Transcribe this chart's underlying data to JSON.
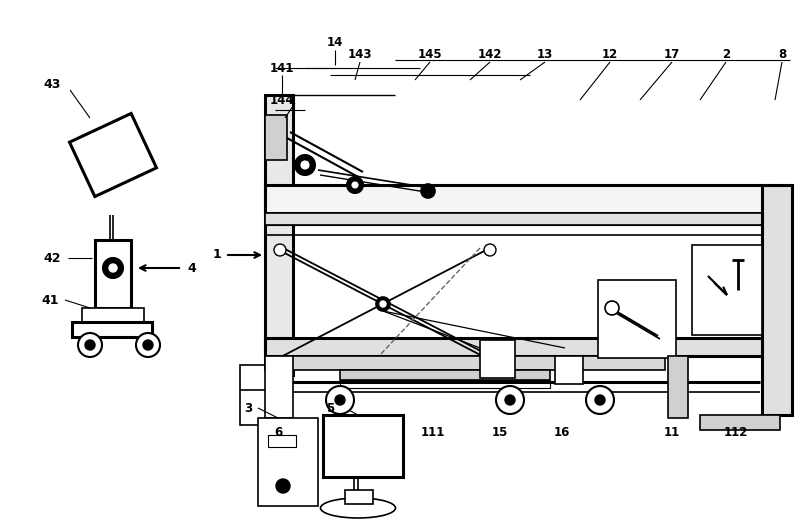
{
  "bg_color": "#ffffff",
  "lc": "#000000",
  "lw": 1.2,
  "tlw": 2.2,
  "fig_w": 8.0,
  "fig_h": 5.25,
  "dpi": 100
}
